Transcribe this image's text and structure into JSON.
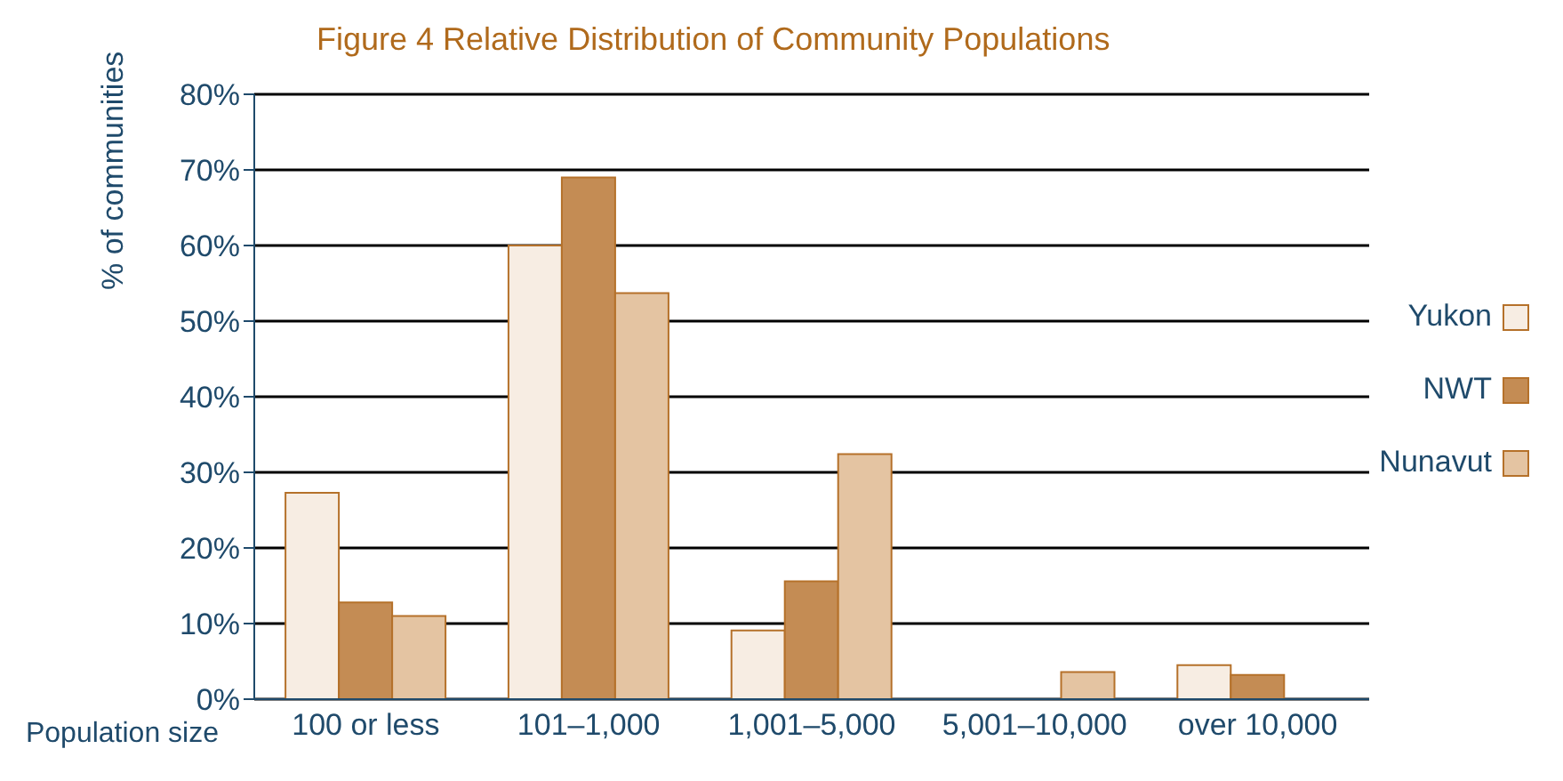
{
  "chart_data": {
    "type": "bar",
    "title": "Figure 4 Relative Distribution of Community Populations",
    "xlabel": "Population size",
    "ylabel": "% of communities",
    "categories": [
      "100 or less",
      "101–1,000",
      "1,001–5,000",
      "5,001–10,000",
      "over 10,000"
    ],
    "series": [
      {
        "name": "Yukon",
        "color": "#f7ede3",
        "values": [
          27.3,
          60,
          9.1,
          0,
          4.5
        ]
      },
      {
        "name": "NWT",
        "color": "#c48c54",
        "values": [
          12.8,
          69,
          15.6,
          0,
          3.2
        ]
      },
      {
        "name": "Nunavut",
        "color": "#e4c4a2",
        "values": [
          11,
          53.7,
          32.4,
          3.6,
          0
        ]
      }
    ],
    "ylim": [
      0,
      80
    ],
    "yticks": [
      {
        "value": 0,
        "label": "0%"
      },
      {
        "value": 10,
        "label": "10%"
      },
      {
        "value": 20,
        "label": "20%"
      },
      {
        "value": 30,
        "label": "30%"
      },
      {
        "value": 40,
        "label": "40%"
      },
      {
        "value": 50,
        "label": "50%"
      },
      {
        "value": 60,
        "label": "60%"
      },
      {
        "value": 70,
        "label": "70%"
      },
      {
        "value": 80,
        "label": "80%"
      }
    ],
    "grid": "y",
    "legend": "right"
  }
}
